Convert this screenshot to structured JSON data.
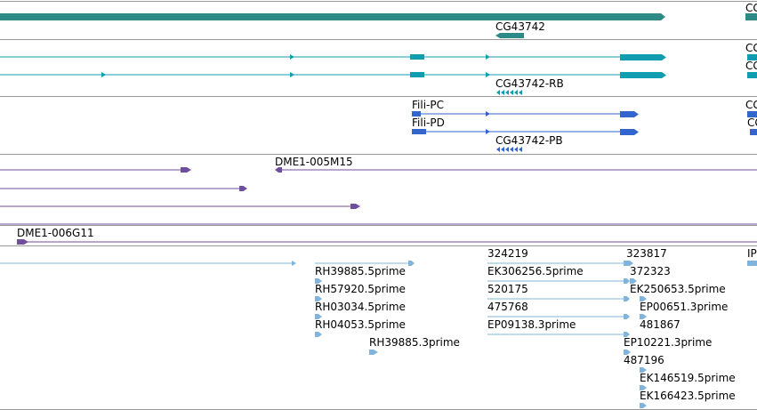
{
  "colors": {
    "gene": "#2e8a86",
    "mrna_teal": "#119db0",
    "mrna_blue": "#3366cc",
    "cdna": "#6f4e9c",
    "est": "#80b4dc",
    "separator": "#999999"
  },
  "tracks": {
    "gene": {
      "labels": [
        "CG43742",
        "CG"
      ]
    },
    "transcripts_a": {
      "labels": [
        "CG43742-RB",
        "CG",
        "CG"
      ]
    },
    "transcripts_b": {
      "labels": [
        "Fili-PC",
        "Fili-PD",
        "CG43742-PB",
        "CG",
        "CG"
      ]
    },
    "clones": {
      "labels": [
        "DME1-005M15",
        "DME1-006G11"
      ]
    },
    "ests": {
      "labels": [
        "RH39885.5prime",
        "RH57920.5prime",
        "RH03034.5prime",
        "RH04053.5prime",
        "RH39885.3prime",
        "324219",
        "EK306256.5prime",
        "520175",
        "475768",
        "EP09138.3prime",
        "323817",
        "372323",
        "EK250653.5prime",
        "EP00651.3prime",
        "481867",
        "EP10221.3prime",
        "487196",
        "EK146519.5prime",
        "EK166423.5prime",
        "IP"
      ]
    }
  }
}
